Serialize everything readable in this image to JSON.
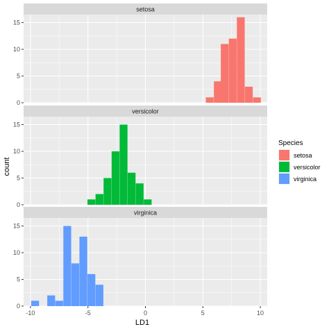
{
  "chart_data": {
    "type": "bar",
    "subtype": "faceted-histogram",
    "xlabel": "LD1",
    "ylabel": "count",
    "xlim": [
      -10.6,
      10.6
    ],
    "ylim": [
      0,
      16.5
    ],
    "x_ticks": [
      -10,
      -5,
      0,
      5,
      10
    ],
    "x_tick_labels": [
      "-10",
      "-5",
      "0",
      "5",
      "10"
    ],
    "y_ticks": [
      0,
      5,
      10,
      15
    ],
    "y_tick_labels": [
      "0",
      "5",
      "10",
      "15"
    ],
    "bin_width": 0.68,
    "grid": true,
    "legend": {
      "title": "Species",
      "position": "right",
      "entries": [
        "setosa",
        "versicolor",
        "virginica"
      ]
    },
    "panels": [
      {
        "name": "setosa",
        "color": "#F8766D",
        "bins": [
          {
            "x": 5.6,
            "count": 1
          },
          {
            "x": 6.3,
            "count": 4
          },
          {
            "x": 6.9,
            "count": 11
          },
          {
            "x": 7.6,
            "count": 12
          },
          {
            "x": 8.3,
            "count": 16
          },
          {
            "x": 9.0,
            "count": 3
          },
          {
            "x": 9.7,
            "count": 1
          }
        ]
      },
      {
        "name": "versicolor",
        "color": "#00BA38",
        "bins": [
          {
            "x": -4.7,
            "count": 1
          },
          {
            "x": -4.0,
            "count": 2
          },
          {
            "x": -3.3,
            "count": 5
          },
          {
            "x": -2.6,
            "count": 10
          },
          {
            "x": -1.9,
            "count": 15
          },
          {
            "x": -1.2,
            "count": 6
          },
          {
            "x": -0.5,
            "count": 4
          },
          {
            "x": 0.2,
            "count": 1
          }
        ]
      },
      {
        "name": "virginica",
        "color": "#619CFF",
        "bins": [
          {
            "x": -9.6,
            "count": 1
          },
          {
            "x": -8.2,
            "count": 2
          },
          {
            "x": -7.5,
            "count": 1
          },
          {
            "x": -6.8,
            "count": 15
          },
          {
            "x": -6.1,
            "count": 8
          },
          {
            "x": -5.4,
            "count": 13
          },
          {
            "x": -4.7,
            "count": 6
          },
          {
            "x": -4.0,
            "count": 4
          }
        ]
      }
    ]
  }
}
